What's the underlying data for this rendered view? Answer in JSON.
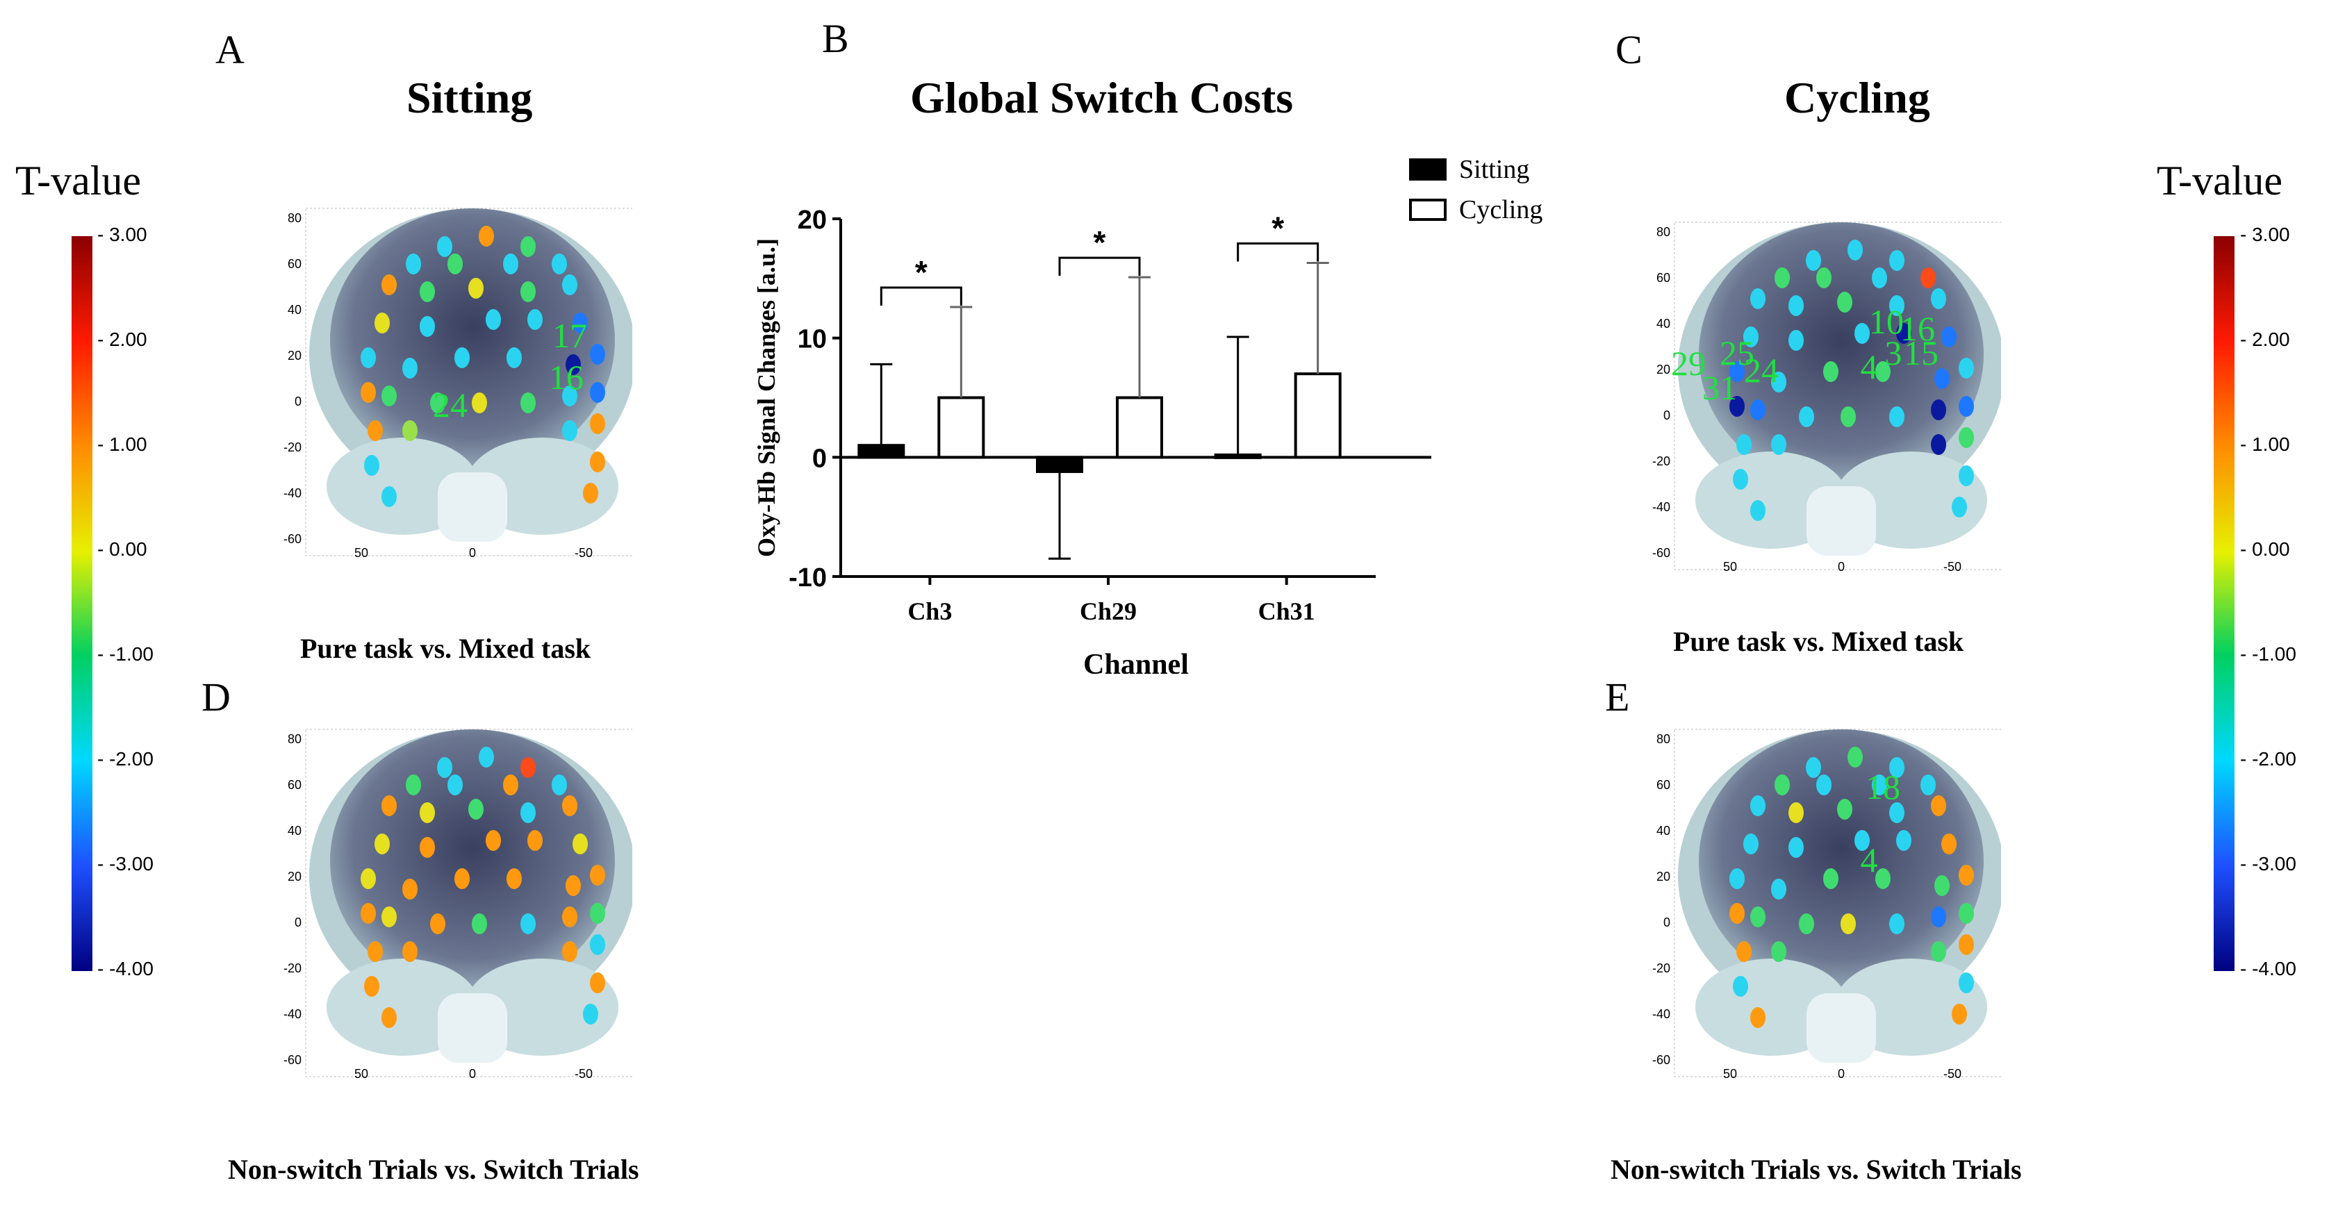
{
  "colorbar": {
    "title": "T-value",
    "ticks": [
      "3.00",
      "2.00",
      "1.00",
      "0.00",
      "-1.00",
      "-2.00",
      "-3.00",
      "-4.00"
    ],
    "colors": [
      "#8b0000",
      "#ff0000",
      "#ff8c00",
      "#ffff00",
      "#00c853",
      "#00e5ff",
      "#1e64ff",
      "#00008b"
    ]
  },
  "panels": {
    "A": {
      "letter": "A",
      "title": "Sitting",
      "caption": "Pure task vs. Mixed task"
    },
    "B": {
      "letter": "B",
      "title": "Global Switch Costs"
    },
    "C": {
      "letter": "C",
      "title": "Cycling",
      "caption": "Pure task vs. Mixed task"
    },
    "D": {
      "letter": "D",
      "caption": "Non-switch Trials vs. Switch Trials"
    },
    "E": {
      "letter": "E",
      "caption": "Non-switch Trials vs. Switch Trials"
    }
  },
  "brain_axes": {
    "y_ticks": [
      "80",
      "60",
      "40",
      "20",
      "0",
      "-20",
      "-40",
      "-60"
    ],
    "x_ticks": [
      "50",
      "0",
      "-50"
    ]
  },
  "channel_labels": {
    "A": [
      "17",
      "16",
      "24"
    ],
    "C": [
      "10",
      "16",
      "25",
      "3",
      "15",
      "29",
      "24",
      "4",
      "31"
    ],
    "D": [],
    "E": [
      "18",
      "4"
    ]
  },
  "chart_data": {
    "type": "bar",
    "title": "Global Switch Costs",
    "xlabel": "Channel",
    "ylabel": "Oxy-Hb Signal Changes [a.u.]",
    "categories": [
      "Ch3",
      "Ch29",
      "Ch31"
    ],
    "ylim": [
      -10,
      20
    ],
    "yticks": [
      -10,
      0,
      10,
      20
    ],
    "legend_position": "top-right",
    "series": [
      {
        "name": "Sitting",
        "values": [
          1.0,
          -1.2,
          0.2
        ],
        "error_upper": [
          7.8,
          null,
          10.1
        ],
        "error_lower": [
          null,
          -8.5,
          null
        ],
        "fill": "#000000"
      },
      {
        "name": "Cycling",
        "values": [
          5.0,
          5.0,
          7.0
        ],
        "error_upper": [
          12.6,
          15.1,
          16.3
        ],
        "error_lower": [
          null,
          null,
          null
        ],
        "fill": "#ffffff"
      }
    ],
    "significance": [
      "*",
      "*",
      "*"
    ]
  }
}
